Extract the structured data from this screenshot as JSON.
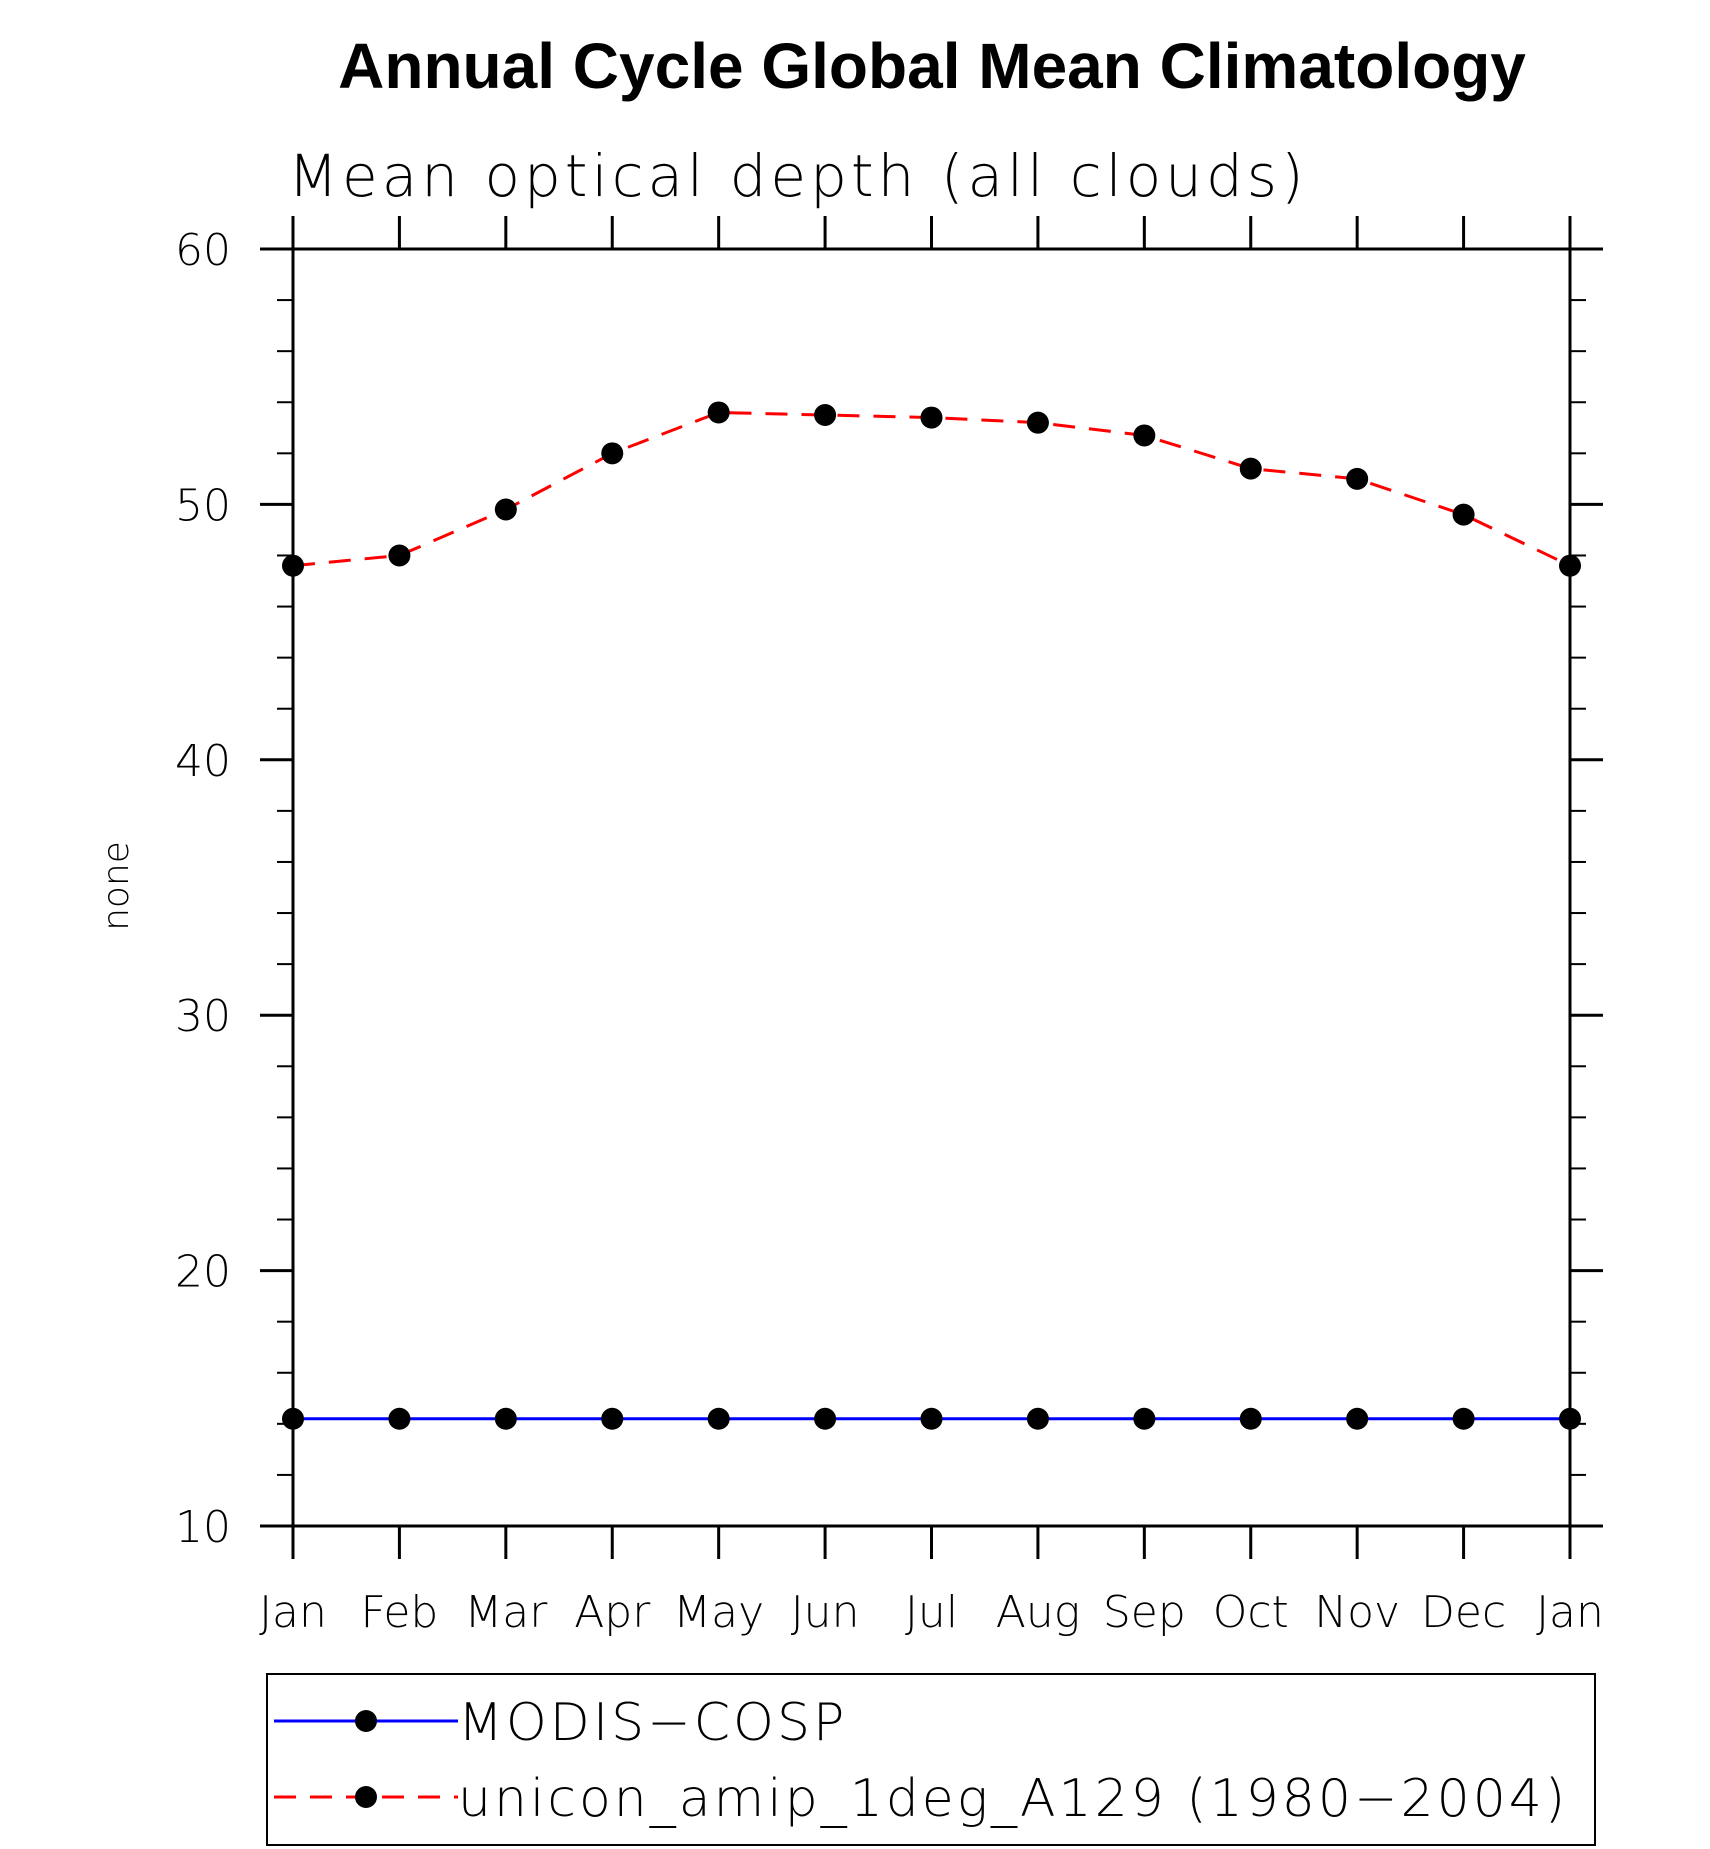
{
  "chart_data": {
    "type": "line",
    "title": "Annual Cycle Global Mean Climatology",
    "subtitle": "Mean optical depth (all clouds)",
    "xlabel": "",
    "ylabel": "none",
    "categories": [
      "Jan",
      "Feb",
      "Mar",
      "Apr",
      "May",
      "Jun",
      "Jul",
      "Aug",
      "Sep",
      "Oct",
      "Nov",
      "Dec",
      "Jan"
    ],
    "ylim": [
      10,
      60
    ],
    "yticks": [
      "10",
      "20",
      "30",
      "40",
      "50",
      "60"
    ],
    "grid": false,
    "legend_position": "bottom",
    "series": [
      {
        "name": "MODIS−COSP",
        "color": "#0000ff",
        "line_style": "solid",
        "marker": "filled-circle",
        "values": [
          14.2,
          14.2,
          14.2,
          14.2,
          14.2,
          14.2,
          14.2,
          14.2,
          14.2,
          14.2,
          14.2,
          14.2,
          14.2
        ]
      },
      {
        "name": "unicon_amip_1deg_A129 (1980−2004)",
        "color": "#ff0000",
        "line_style": "dashed",
        "marker": "filled-circle",
        "values": [
          47.6,
          48.0,
          49.8,
          52.0,
          53.6,
          53.5,
          53.4,
          53.2,
          52.7,
          51.4,
          51.0,
          49.6,
          47.6
        ]
      }
    ]
  }
}
